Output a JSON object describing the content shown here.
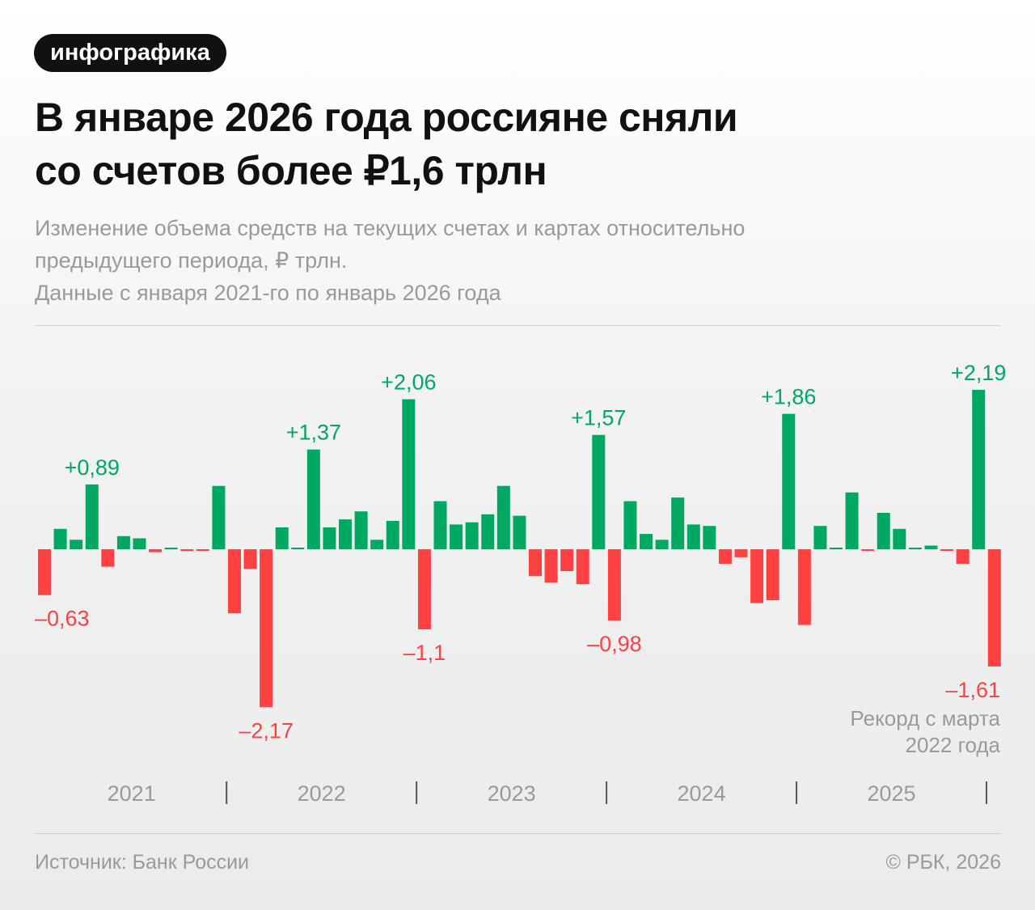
{
  "badge": "инфографика",
  "title_line1": "В январе 2026 года россияне сняли",
  "title_line2": "со счетов более ₽1,6 трлн",
  "subtitle_line1": "Изменение объема средств на текущих счетах и картах относительно",
  "subtitle_line2": "предыдущего периода, ₽ трлн.",
  "subtitle_line3": "Данные с января 2021-го по январь 2026 года",
  "footer": {
    "source": "Источник: Банк России",
    "copyright": "© РБК, 2026"
  },
  "colors": {
    "positive": "#00A862",
    "negative": "#FF4141",
    "text_grey": "#9a9a9a"
  },
  "chart_data": {
    "type": "bar",
    "title": "В январе 2026 года россияне сняли со счетов более ₽1,6 трлн",
    "ylabel": "₽ трлн",
    "x_start": "2021-01",
    "x_end": "2026-01",
    "x_tick_labels": [
      "2021",
      "2022",
      "2023",
      "2024",
      "2025"
    ],
    "grid": false,
    "values": [
      -0.63,
      0.28,
      0.13,
      0.89,
      -0.24,
      0.18,
      0.15,
      -0.04,
      0.02,
      -0.02,
      -0.02,
      0.87,
      -0.88,
      -0.27,
      -2.17,
      0.3,
      0.02,
      1.37,
      0.3,
      0.41,
      0.52,
      0.13,
      0.39,
      2.06,
      -1.1,
      0.66,
      0.34,
      0.37,
      0.48,
      0.87,
      0.46,
      -0.37,
      -0.46,
      -0.3,
      -0.48,
      1.57,
      -0.98,
      0.66,
      0.21,
      0.13,
      0.71,
      0.34,
      0.32,
      -0.2,
      -0.11,
      -0.74,
      -0.7,
      1.86,
      -1.04,
      0.32,
      0.02,
      0.78,
      -0.02,
      0.5,
      0.28,
      0.02,
      0.05,
      -0.02,
      -0.2,
      2.19,
      -1.61
    ],
    "data_labels": [
      {
        "index": 0,
        "text": "–0,63"
      },
      {
        "index": 3,
        "text": "+0,89"
      },
      {
        "index": 14,
        "text": "–2,17"
      },
      {
        "index": 17,
        "text": "+1,37"
      },
      {
        "index": 23,
        "text": "+2,06"
      },
      {
        "index": 24,
        "text": "–1,1"
      },
      {
        "index": 35,
        "text": "+1,57"
      },
      {
        "index": 36,
        "text": "–0,98"
      },
      {
        "index": 47,
        "text": "+1,86"
      },
      {
        "index": 59,
        "text": "+2,19"
      },
      {
        "index": 60,
        "text": "–1,61"
      }
    ],
    "annotation_line1": "Рекорд с марта",
    "annotation_line2": "2022 года"
  }
}
